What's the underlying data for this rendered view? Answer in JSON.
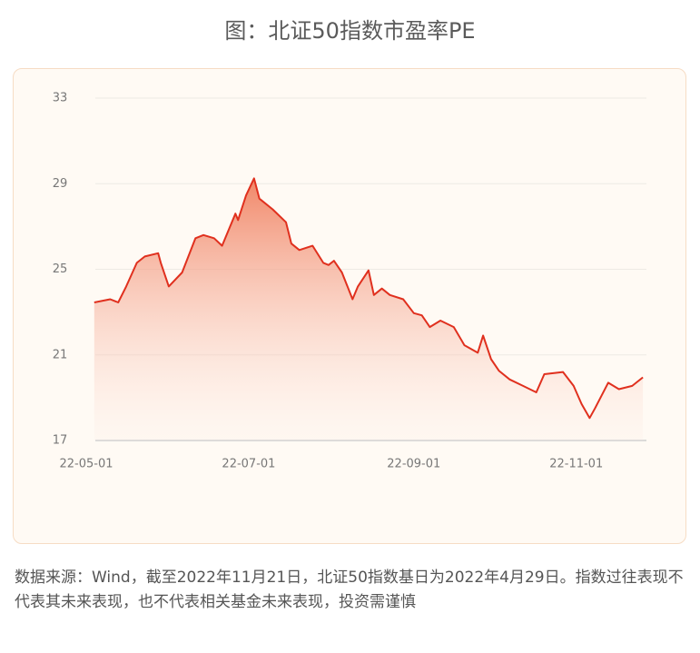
{
  "chart_data": {
    "type": "line",
    "title": "图：北证50指数市盈率PE",
    "x": [
      "22-05-04",
      "22-05-10",
      "22-05-13",
      "22-05-16",
      "22-05-20",
      "22-05-23",
      "22-05-28",
      "22-05-29",
      "22-06-01",
      "22-06-06",
      "22-06-11",
      "22-06-14",
      "22-06-18",
      "22-06-21",
      "22-06-26",
      "22-06-27",
      "22-06-30",
      "22-07-03",
      "22-07-05",
      "22-07-10",
      "22-07-15",
      "22-07-17",
      "22-07-20",
      "22-07-25",
      "22-07-29",
      "22-07-31",
      "22-08-02",
      "22-08-05",
      "22-08-09",
      "22-08-11",
      "22-08-15",
      "22-08-17",
      "22-08-20",
      "22-08-23",
      "22-08-28",
      "22-09-01",
      "22-09-04",
      "22-09-07",
      "22-09-11",
      "22-09-16",
      "22-09-20",
      "22-09-25",
      "22-09-27",
      "22-09-30",
      "22-10-03",
      "22-10-07",
      "22-10-12",
      "22-10-17",
      "22-10-20",
      "22-10-27",
      "22-10-31",
      "22-11-03",
      "22-11-06",
      "22-11-08",
      "22-11-13",
      "22-11-17",
      "22-11-22",
      "22-11-26"
    ],
    "series": [
      {
        "name": "PE",
        "color": "#e0301e",
        "values": [
          23.45,
          23.6,
          23.45,
          24.2,
          25.3,
          25.6,
          25.75,
          25.3,
          24.2,
          24.85,
          26.45,
          26.6,
          26.45,
          26.1,
          27.6,
          27.3,
          28.45,
          29.25,
          28.3,
          27.8,
          27.2,
          26.2,
          25.9,
          26.1,
          25.3,
          25.2,
          25.4,
          24.85,
          23.6,
          24.2,
          24.95,
          23.8,
          24.1,
          23.8,
          23.6,
          22.95,
          22.85,
          22.3,
          22.6,
          22.3,
          21.45,
          21.1,
          21.9,
          20.8,
          20.25,
          19.85,
          19.55,
          19.25,
          20.1,
          20.2,
          19.55,
          18.7,
          18.05,
          18.5,
          19.7,
          19.4,
          19.55,
          19.95
        ]
      }
    ],
    "xlim": [
      "22-05-01",
      "22-11-27"
    ],
    "xticks": [
      "22-05-01",
      "22-07-01",
      "22-09-01",
      "22-11-01"
    ],
    "ylim": [
      17,
      33
    ],
    "yticks": [
      17,
      21,
      25,
      29,
      33
    ],
    "grid": true,
    "source_note": "数据来源：Wind，截至2022年11月21日，北证50指数基日为2022年4月29日。指数过往表现不代表其未来表现，也不代表相关基金未来表现，投资需谨慎"
  }
}
